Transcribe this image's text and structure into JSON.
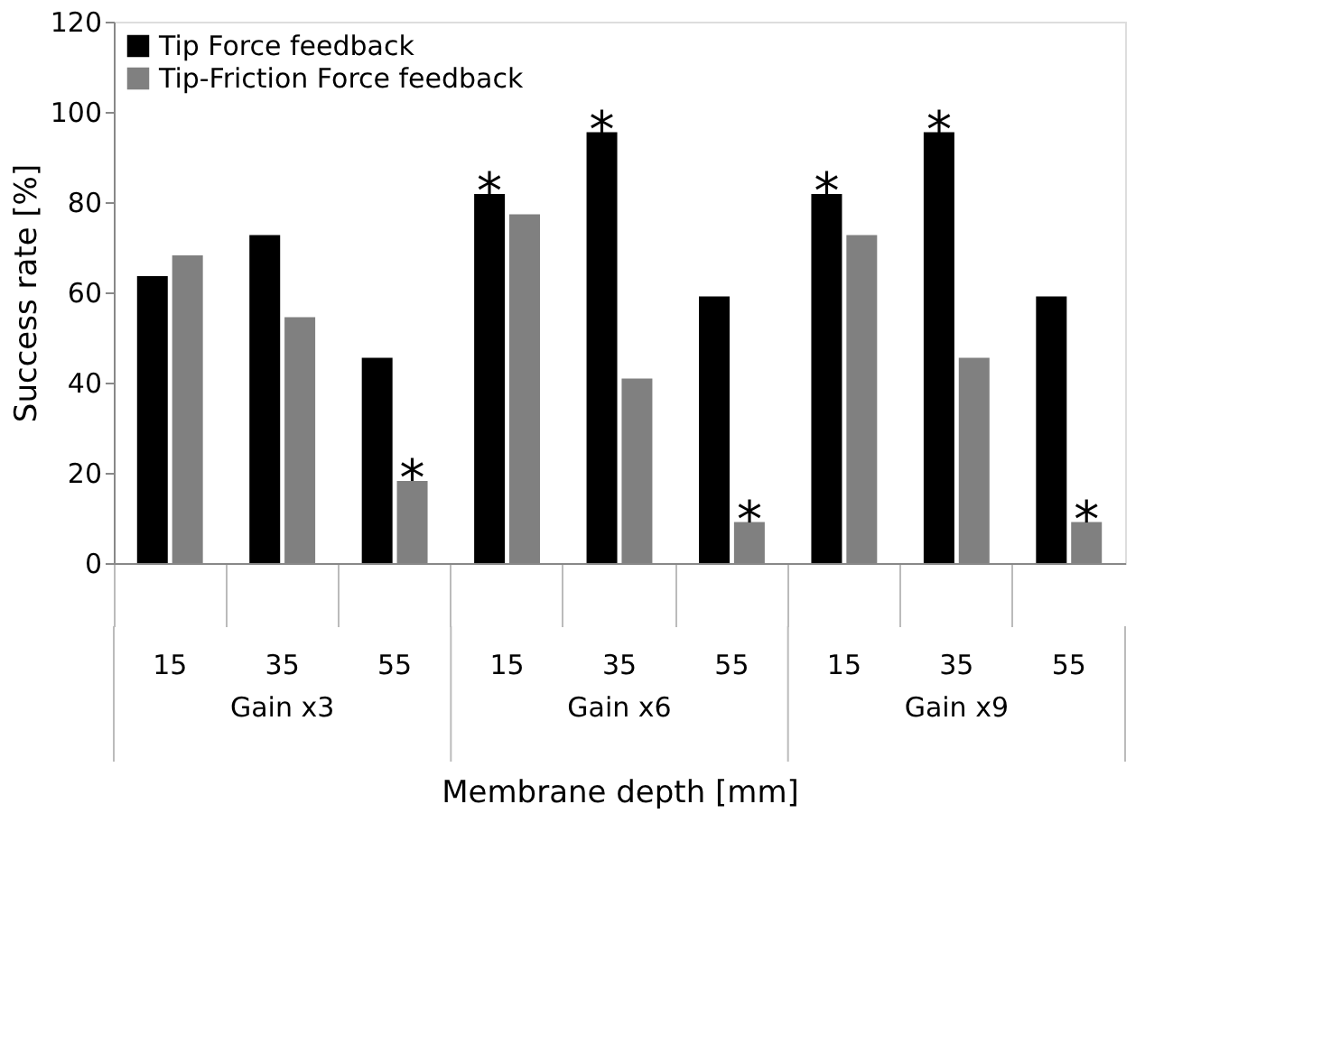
{
  "chart_data": {
    "type": "bar",
    "xlabel": "Membrane depth [mm]",
    "ylabel": "Success rate [%]",
    "categories": [
      "15",
      "35",
      "55",
      "15",
      "35",
      "55",
      "15",
      "35",
      "55"
    ],
    "series": [
      {
        "name": "Tip Force feedback",
        "color": "#000000",
        "values": [
          63.6,
          72.7,
          45.5,
          81.8,
          95.5,
          59.1,
          81.8,
          95.5,
          59.1
        ],
        "value_labels": [
          null,
          null,
          null,
          "*",
          "*",
          null,
          "*",
          "*",
          null
        ]
      },
      {
        "name": "Tip-Friction Force feedback",
        "color": "#808080",
        "values": [
          68.2,
          54.5,
          18.2,
          77.3,
          40.9,
          9.1,
          72.7,
          45.5,
          9.1
        ],
        "value_labels": [
          null,
          null,
          "*",
          null,
          null,
          "*",
          null,
          null,
          "*"
        ]
      }
    ],
    "ylim": [
      0,
      120
    ],
    "yticks": [
      0,
      20,
      40,
      60,
      80,
      100,
      120
    ],
    "grid": false,
    "legend": "top left",
    "annotations": [
      "Gain x3",
      "Gain x6",
      "Gain x9"
    ]
  }
}
